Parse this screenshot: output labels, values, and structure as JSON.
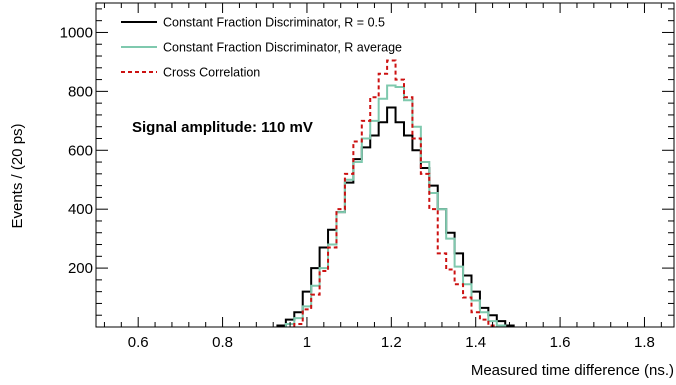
{
  "chart_data": {
    "type": "histogram",
    "xlabel": "Measured time difference (ns.)",
    "ylabel": "Events / (20 ps)",
    "xlim": [
      0.5,
      1.87
    ],
    "ylim": [
      0,
      1100
    ],
    "bin_width": 0.02,
    "x_ticks": [
      0.6,
      0.8,
      1,
      1.2,
      1.4,
      1.6,
      1.8
    ],
    "x_tick_labels": [
      "0.6",
      "0.8",
      "1",
      "1.2",
      "1.4",
      "1.6",
      "1.8"
    ],
    "y_ticks": [
      200,
      400,
      600,
      800,
      1000
    ],
    "y_tick_labels": [
      "200",
      "400",
      "600",
      "800",
      "1000"
    ],
    "annotation": "Signal amplitude: 110 mV",
    "legend_position": "top-left",
    "grid": false,
    "series": [
      {
        "name": "Constant Fraction Discriminator, R = 0.5",
        "color": "#000000",
        "style": "solid",
        "x": [
          0.94,
          0.96,
          0.98,
          1.0,
          1.02,
          1.04,
          1.06,
          1.08,
          1.1,
          1.12,
          1.14,
          1.16,
          1.18,
          1.2,
          1.22,
          1.24,
          1.26,
          1.28,
          1.3,
          1.32,
          1.34,
          1.36,
          1.38,
          1.4,
          1.42,
          1.44,
          1.46,
          1.48
        ],
        "values": [
          5,
          25,
          50,
          120,
          200,
          270,
          330,
          390,
          490,
          570,
          610,
          650,
          695,
          745,
          695,
          650,
          600,
          540,
          480,
          400,
          320,
          250,
          175,
          120,
          65,
          40,
          20,
          5
        ]
      },
      {
        "name": "Constant Fraction Discriminator, R average",
        "color": "#7fc9ae",
        "style": "solid",
        "x": [
          0.96,
          0.98,
          1.0,
          1.02,
          1.04,
          1.06,
          1.08,
          1.1,
          1.12,
          1.14,
          1.16,
          1.18,
          1.2,
          1.22,
          1.24,
          1.26,
          1.28,
          1.3,
          1.32,
          1.34,
          1.36,
          1.38,
          1.4,
          1.42,
          1.44,
          1.46
        ],
        "values": [
          10,
          30,
          70,
          140,
          200,
          280,
          390,
          500,
          560,
          640,
          700,
          775,
          820,
          815,
          770,
          680,
          560,
          455,
          400,
          300,
          205,
          145,
          90,
          50,
          20,
          5
        ]
      },
      {
        "name": "Cross Correlation",
        "color": "#cc1111",
        "style": "dashed",
        "x": [
          0.98,
          1.0,
          1.02,
          1.04,
          1.06,
          1.08,
          1.1,
          1.12,
          1.14,
          1.16,
          1.18,
          1.2,
          1.22,
          1.24,
          1.26,
          1.28,
          1.3,
          1.32,
          1.34,
          1.36,
          1.38,
          1.4,
          1.42,
          1.44
        ],
        "values": [
          10,
          60,
          110,
          190,
          270,
          400,
          520,
          630,
          700,
          780,
          860,
          905,
          840,
          780,
          640,
          520,
          400,
          250,
          195,
          145,
          100,
          50,
          25,
          5
        ]
      }
    ]
  }
}
